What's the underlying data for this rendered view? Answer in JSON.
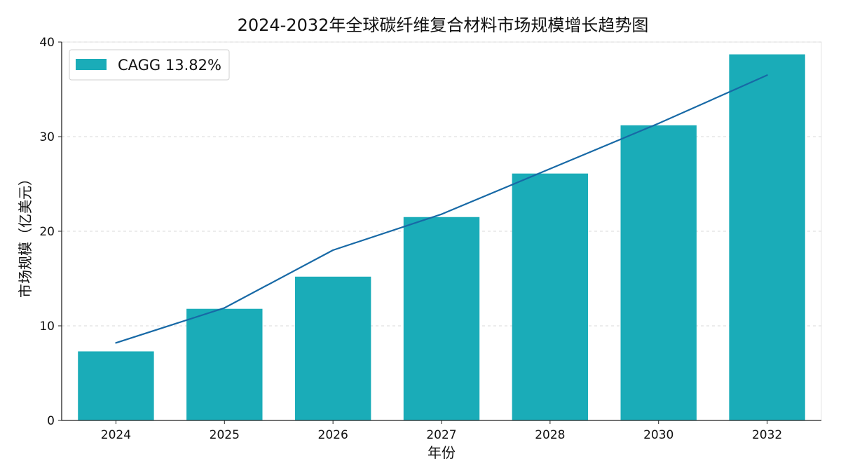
{
  "chart_data": {
    "type": "bar",
    "title": "2024-2032年全球碳纤维复合材料市场规模增长趋势图",
    "xlabel": "年份",
    "ylabel": "市场规模（亿美元）",
    "categories": [
      "2024",
      "2025",
      "2026",
      "2027",
      "2028",
      "2030",
      "2032"
    ],
    "series": [
      {
        "name": "CAGG 13.82%",
        "type": "bar",
        "values": [
          7.3,
          11.8,
          15.2,
          21.5,
          26.1,
          31.2,
          38.7
        ]
      },
      {
        "type": "line",
        "values": [
          8.2,
          11.9,
          18.0,
          21.8,
          26.6,
          31.4,
          36.5
        ]
      }
    ],
    "ylim": [
      0,
      40
    ],
    "yticks": [
      0,
      10,
      20,
      30,
      40
    ],
    "grid": true,
    "legend_position": "top-left",
    "colors": {
      "bar": "#1aacb8",
      "line": "#1769a6",
      "grid": "#d9d9d9",
      "axis": "#222222"
    }
  }
}
